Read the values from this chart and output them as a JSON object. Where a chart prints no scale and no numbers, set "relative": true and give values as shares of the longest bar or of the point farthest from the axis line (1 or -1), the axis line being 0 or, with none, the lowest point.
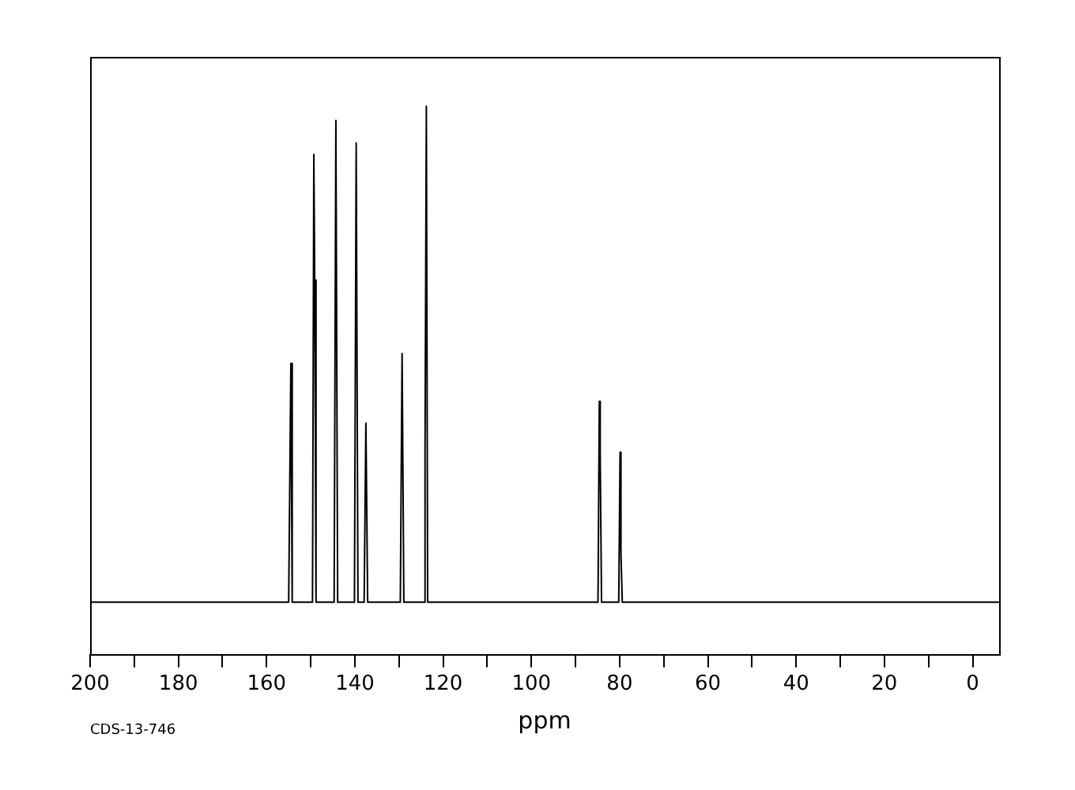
{
  "chart_data": {
    "type": "line",
    "relative": true,
    "xlabel": "ppm",
    "annotations": [
      "CDS-13-746"
    ],
    "xlim": [
      200,
      -6
    ],
    "xticks": [
      200,
      {
        "value": 190,
        "label": null
      },
      180,
      {
        "value": 170,
        "label": null
      },
      160,
      {
        "value": 150,
        "label": null
      },
      140,
      {
        "value": 130,
        "label": null
      },
      120,
      {
        "value": 110,
        "label": null
      },
      100,
      {
        "value": 90,
        "label": null
      },
      80,
      {
        "value": 70,
        "label": null
      },
      60,
      {
        "value": 50,
        "label": null
      },
      40,
      {
        "value": 30,
        "label": null
      },
      20,
      {
        "value": 10,
        "label": null
      },
      0
    ],
    "grid": false,
    "legend": false,
    "x": [
      200,
      155.0,
      154.5,
      154.2,
      149.6,
      149.3,
      149.1,
      148.8,
      144.7,
      144.3,
      143.9,
      140.1,
      139.7,
      139.3,
      137.9,
      137.5,
      137.1,
      129.7,
      129.3,
      128.9,
      124.4,
      124.1,
      123.8,
      123.5,
      84.9,
      84.6,
      84.4,
      84.1,
      80.2,
      79.9,
      79.7,
      79.4,
      -6
    ],
    "series": [
      {
        "color": "#000000",
        "values": [
          0.096,
          0.096,
          0.531,
          0.096,
          0.096,
          0.912,
          0.683,
          0.096,
          0.096,
          0.974,
          0.096,
          0.096,
          0.933,
          0.096,
          0.096,
          0.422,
          0.096,
          0.096,
          0.549,
          0.096,
          0.096,
          0.368,
          1.0,
          0.096,
          0.096,
          0.462,
          0.36,
          0.096,
          0.096,
          0.369,
          0.183,
          0.096,
          0.096
        ]
      }
    ]
  }
}
